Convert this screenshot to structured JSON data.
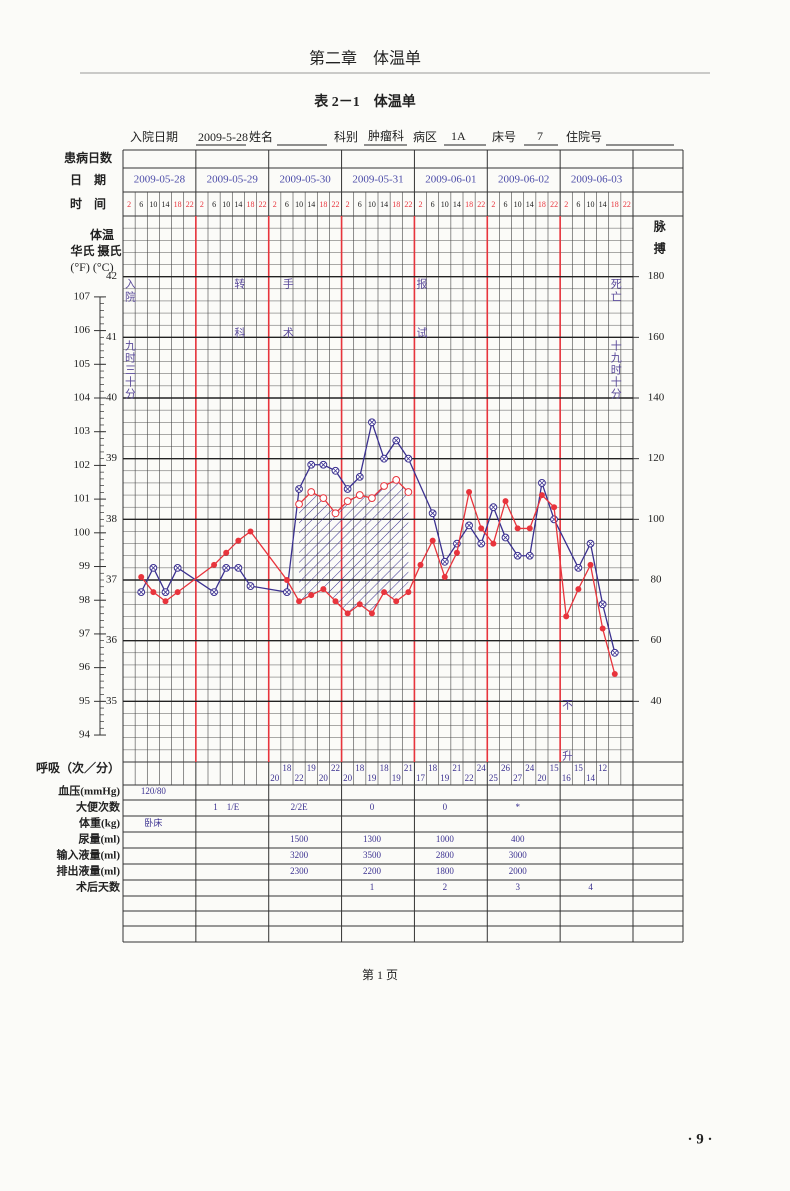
{
  "header": {
    "chapter": "第二章　体温单"
  },
  "table_title": "表 2－1　体温单",
  "patient": {
    "admission_label": "入院日期",
    "admission_date": "2009-5-28",
    "name_label": "姓名",
    "dept_label": "科别",
    "dept": "肿瘤科",
    "ward_label": "病区",
    "ward": "1A",
    "bed_label": "床号",
    "bed": "7",
    "record_label": "住院号"
  },
  "chart_data": {
    "type": "line",
    "labels": {
      "day_count": "患病日数",
      "date": "日　期",
      "time": "时　间",
      "temp": "体温",
      "scales": "华氏 摄氏",
      "units": "(°F) (°C)",
      "pulse": "脉搏",
      "respiration": "呼吸（次／分）"
    },
    "dates": [
      "2009-05-28",
      "2009-05-29",
      "2009-05-30",
      "2009-05-31",
      "2009-06-01",
      "2009-06-02",
      "2009-06-03"
    ],
    "categories": [
      2,
      6,
      10,
      14,
      18,
      22,
      2,
      6,
      10,
      14,
      18,
      22,
      2,
      6,
      10,
      14,
      18,
      22,
      2,
      6,
      10,
      14,
      18,
      22,
      2,
      6,
      10,
      14,
      18,
      22,
      2,
      6,
      10,
      14,
      18,
      22,
      2,
      6,
      10,
      14,
      18,
      22
    ],
    "ylim": [
      34,
      43
    ],
    "yticks": [
      35,
      36,
      37,
      38,
      39,
      40,
      41,
      42
    ],
    "fticks": [
      94,
      95,
      96,
      97,
      98,
      99,
      100,
      101,
      102,
      103,
      104,
      105,
      106,
      107
    ],
    "y2lim": [
      20,
      200
    ],
    "y2ticks": [
      40,
      60,
      80,
      100,
      120,
      140,
      160,
      180
    ],
    "grid": true,
    "series": [
      {
        "color": "#3b3190",
        "marker": "circle-cross",
        "values": [
          null,
          36.8,
          37.2,
          36.8,
          37.2,
          null,
          null,
          36.8,
          37.2,
          37.2,
          36.9,
          null,
          null,
          36.8,
          38.5,
          38.9,
          38.9,
          38.8,
          38.5,
          38.7,
          39.6,
          39.0,
          39.3,
          39.0,
          null,
          38.1,
          37.3,
          37.6,
          37.9,
          37.6,
          38.2,
          37.7,
          37.4,
          37.4,
          38.6,
          38.0,
          null,
          37.2,
          37.6,
          36.6,
          35.8,
          null
        ]
      },
      {
        "color": "#e8343c",
        "marker": "dot",
        "axis": "y2",
        "values": [
          null,
          81,
          76,
          73,
          76,
          null,
          null,
          85,
          89,
          93,
          96,
          null,
          null,
          80,
          73,
          75,
          77,
          73,
          69,
          72,
          69,
          76,
          73,
          76,
          85,
          93,
          81,
          89,
          109,
          97,
          92,
          106,
          97,
          97,
          108,
          104,
          68,
          77,
          85,
          64,
          49,
          null
        ]
      },
      {
        "color": "#e8343c",
        "marker": "circle",
        "axis": "y2",
        "values": [
          null,
          null,
          null,
          null,
          null,
          null,
          null,
          null,
          null,
          null,
          null,
          null,
          null,
          null,
          105,
          109,
          107,
          102,
          106,
          108,
          107,
          111,
          113,
          109,
          null,
          null,
          null,
          null,
          null,
          null,
          null,
          null,
          null,
          null,
          null,
          null,
          null,
          null,
          null,
          null,
          null,
          null
        ]
      }
    ],
    "annotations": [
      "入院",
      "九时三十分",
      "转科",
      "手术",
      "报试",
      "死亡",
      "十九时十分",
      "不升"
    ],
    "respiration": [
      null,
      null,
      null,
      null,
      null,
      null,
      null,
      null,
      null,
      null,
      null,
      null,
      20,
      18,
      22,
      19,
      20,
      22,
      20,
      18,
      19,
      18,
      19,
      21,
      17,
      18,
      19,
      21,
      22,
      24,
      25,
      26,
      27,
      24,
      20,
      15,
      16,
      15,
      14,
      12,
      null,
      null
    ],
    "bottom_rows": [
      {
        "label": "血压(mmHg)",
        "values": [
          "120/80",
          null,
          null,
          null,
          null,
          null,
          null
        ]
      },
      {
        "label": "大便次数",
        "values": [
          null,
          "1　1/E",
          "2/2E",
          "0",
          "0",
          "*",
          null
        ]
      },
      {
        "label": "体重(kg)",
        "values": [
          "卧床",
          null,
          null,
          null,
          null,
          null,
          null
        ]
      },
      {
        "label": "尿量(ml)",
        "values": [
          null,
          null,
          1500,
          1300,
          1000,
          400,
          null
        ]
      },
      {
        "label": "输入液量(ml)",
        "values": [
          null,
          null,
          3200,
          3500,
          2800,
          3000,
          null
        ]
      },
      {
        "label": "排出液量(ml)",
        "values": [
          null,
          null,
          2300,
          2200,
          1800,
          2000,
          null
        ]
      },
      {
        "label": "术后天数",
        "values": [
          null,
          null,
          null,
          1,
          2,
          3,
          4
        ]
      }
    ]
  },
  "footer": {
    "page": "第 1 页",
    "page_number": "· 9 ·"
  }
}
